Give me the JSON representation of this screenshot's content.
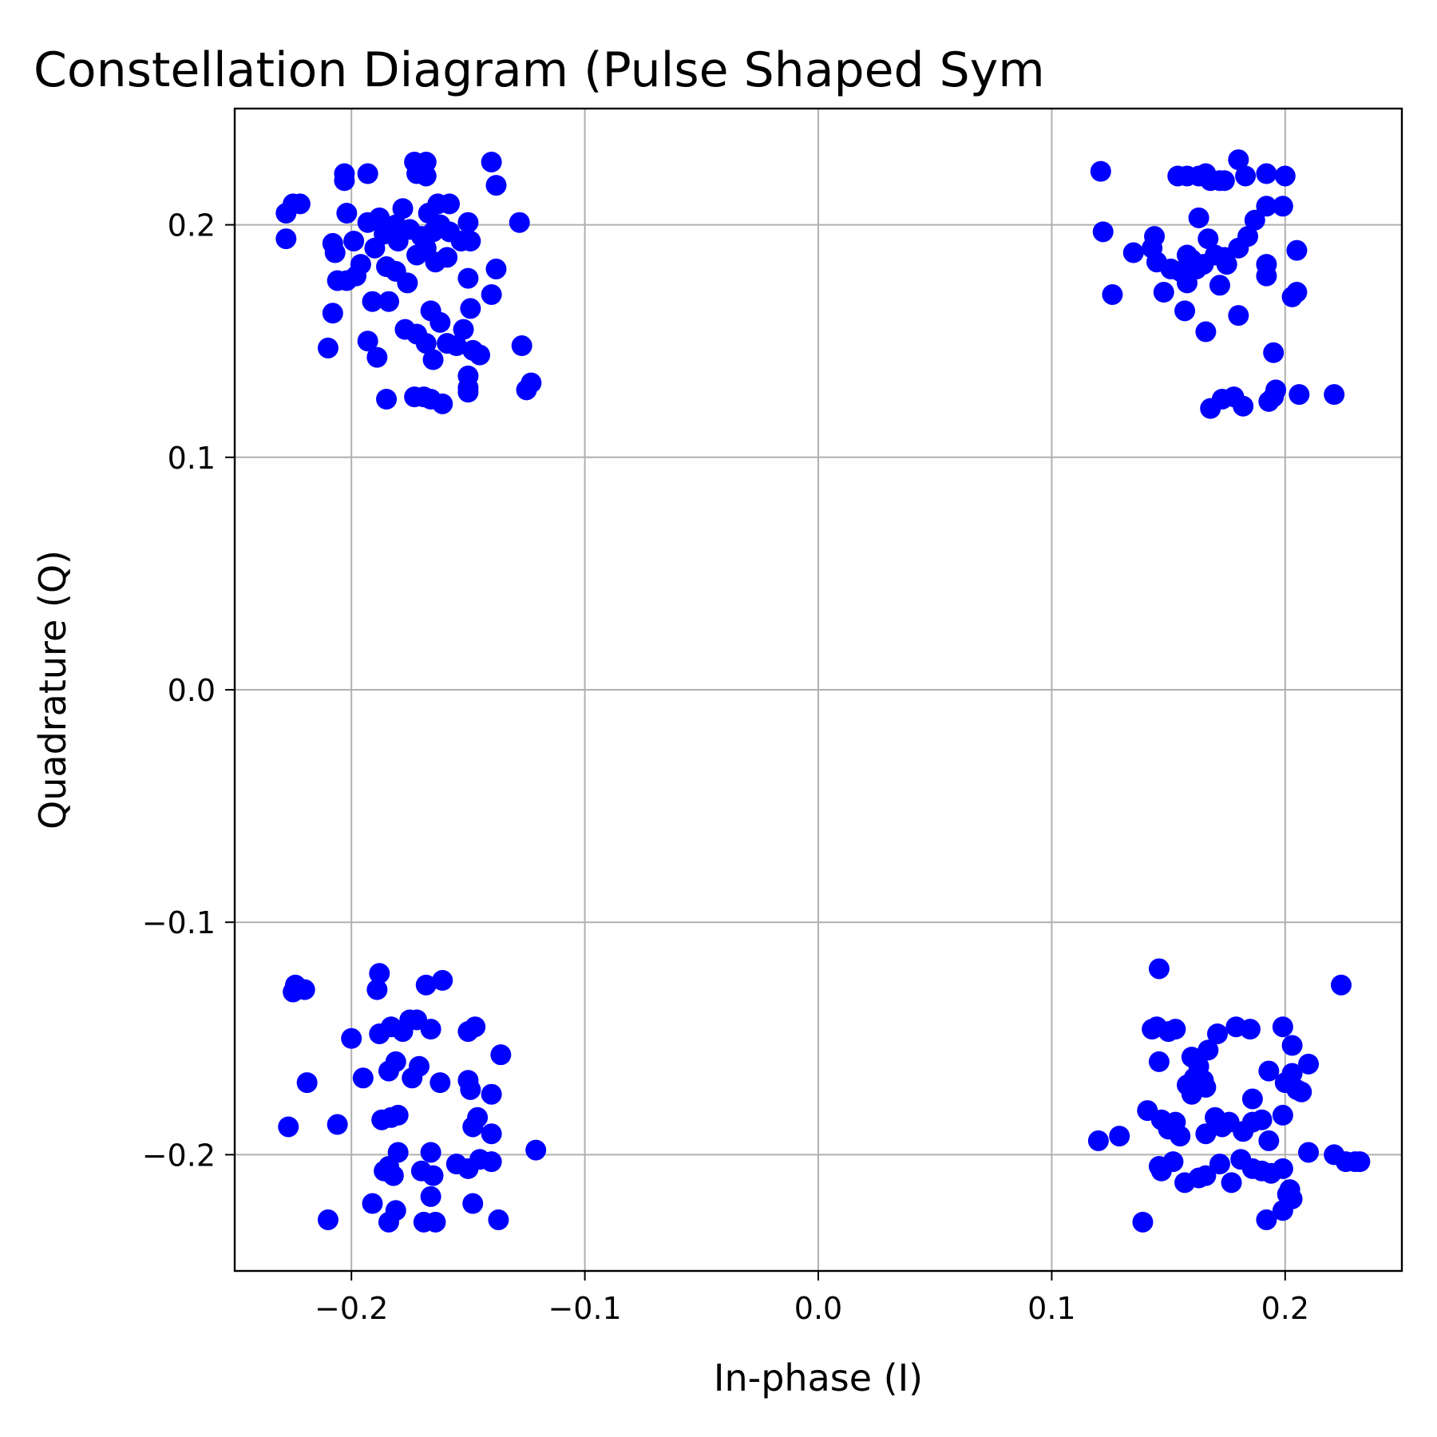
{
  "chart_data": {
    "type": "scatter",
    "title": "Constellation Diagram (Pulse Shaped Sym",
    "xlabel": "In-phase (I)",
    "ylabel": "Quadrature (Q)",
    "xlim": [
      -0.25,
      0.25
    ],
    "ylim": [
      -0.25,
      0.25
    ],
    "grid": true,
    "legend": "none",
    "marker_color": "#0000ff",
    "xticks": [
      -0.2,
      -0.1,
      0.0,
      0.1,
      0.2
    ],
    "xtick_labels": [
      "−0.2",
      "−0.1",
      "0.0",
      "0.1",
      "0.2"
    ],
    "yticks": [
      -0.2,
      -0.1,
      0.0,
      0.1,
      0.2
    ],
    "ytick_labels": [
      "−0.2",
      "−0.1",
      "0.0",
      "0.1",
      "0.2"
    ],
    "series": [
      {
        "points": [
          [
            -0.228,
            0.205
          ],
          [
            -0.225,
            0.209
          ],
          [
            -0.222,
            0.209
          ],
          [
            -0.228,
            0.194
          ],
          [
            -0.203,
            0.222
          ],
          [
            -0.203,
            0.219
          ],
          [
            -0.193,
            0.222
          ],
          [
            -0.202,
            0.205
          ],
          [
            -0.208,
            0.192
          ],
          [
            -0.207,
            0.188
          ],
          [
            -0.199,
            0.193
          ],
          [
            -0.193,
            0.201
          ],
          [
            -0.188,
            0.203
          ],
          [
            -0.185,
            0.198
          ],
          [
            -0.181,
            0.2
          ],
          [
            -0.178,
            0.207
          ],
          [
            -0.173,
            0.227
          ],
          [
            -0.168,
            0.227
          ],
          [
            -0.172,
            0.222
          ],
          [
            -0.168,
            0.221
          ],
          [
            -0.167,
            0.205
          ],
          [
            -0.163,
            0.209
          ],
          [
            -0.158,
            0.209
          ],
          [
            -0.162,
            0.2
          ],
          [
            -0.165,
            0.197
          ],
          [
            -0.15,
            0.201
          ],
          [
            -0.14,
            0.227
          ],
          [
            -0.138,
            0.217
          ],
          [
            -0.128,
            0.201
          ],
          [
            -0.149,
            0.193
          ],
          [
            -0.15,
            0.177
          ],
          [
            -0.138,
            0.181
          ],
          [
            -0.14,
            0.17
          ],
          [
            -0.149,
            0.164
          ],
          [
            -0.159,
            0.186
          ],
          [
            -0.164,
            0.184
          ],
          [
            -0.168,
            0.19
          ],
          [
            -0.172,
            0.187
          ],
          [
            -0.176,
            0.175
          ],
          [
            -0.181,
            0.18
          ],
          [
            -0.185,
            0.182
          ],
          [
            -0.19,
            0.19
          ],
          [
            -0.196,
            0.183
          ],
          [
            -0.198,
            0.178
          ],
          [
            -0.202,
            0.176
          ],
          [
            -0.206,
            0.176
          ],
          [
            -0.21,
            0.147
          ],
          [
            -0.208,
            0.162
          ],
          [
            -0.191,
            0.167
          ],
          [
            -0.184,
            0.167
          ],
          [
            -0.193,
            0.15
          ],
          [
            -0.189,
            0.143
          ],
          [
            -0.185,
            0.125
          ],
          [
            -0.173,
            0.126
          ],
          [
            -0.169,
            0.126
          ],
          [
            -0.166,
            0.125
          ],
          [
            -0.161,
            0.123
          ],
          [
            -0.177,
            0.155
          ],
          [
            -0.172,
            0.153
          ],
          [
            -0.168,
            0.149
          ],
          [
            -0.166,
            0.163
          ],
          [
            -0.162,
            0.158
          ],
          [
            -0.165,
            0.142
          ],
          [
            -0.159,
            0.149
          ],
          [
            -0.155,
            0.148
          ],
          [
            -0.152,
            0.155
          ],
          [
            -0.148,
            0.146
          ],
          [
            -0.145,
            0.144
          ],
          [
            -0.15,
            0.135
          ],
          [
            -0.15,
            0.13
          ],
          [
            -0.15,
            0.128
          ],
          [
            -0.127,
            0.148
          ],
          [
            -0.125,
            0.129
          ],
          [
            -0.123,
            0.132
          ],
          [
            -0.158,
            0.197
          ],
          [
            -0.153,
            0.193
          ],
          [
            -0.18,
            0.193
          ],
          [
            -0.186,
            0.196
          ],
          [
            -0.175,
            0.198
          ],
          [
            -0.17,
            0.195
          ]
        ]
      },
      {
        "points": [
          [
            0.121,
            0.223
          ],
          [
            0.122,
            0.197
          ],
          [
            0.126,
            0.17
          ],
          [
            0.135,
            0.188
          ],
          [
            0.143,
            0.19
          ],
          [
            0.144,
            0.195
          ],
          [
            0.145,
            0.184
          ],
          [
            0.148,
            0.171
          ],
          [
            0.151,
            0.181
          ],
          [
            0.154,
            0.221
          ],
          [
            0.158,
            0.221
          ],
          [
            0.163,
            0.221
          ],
          [
            0.166,
            0.222
          ],
          [
            0.168,
            0.219
          ],
          [
            0.172,
            0.219
          ],
          [
            0.174,
            0.219
          ],
          [
            0.18,
            0.228
          ],
          [
            0.183,
            0.221
          ],
          [
            0.192,
            0.222
          ],
          [
            0.2,
            0.221
          ],
          [
            0.192,
            0.208
          ],
          [
            0.199,
            0.208
          ],
          [
            0.187,
            0.202
          ],
          [
            0.184,
            0.195
          ],
          [
            0.18,
            0.19
          ],
          [
            0.174,
            0.186
          ],
          [
            0.17,
            0.187
          ],
          [
            0.167,
            0.194
          ],
          [
            0.163,
            0.203
          ],
          [
            0.162,
            0.181
          ],
          [
            0.158,
            0.187
          ],
          [
            0.155,
            0.18
          ],
          [
            0.158,
            0.175
          ],
          [
            0.157,
            0.163
          ],
          [
            0.166,
            0.154
          ],
          [
            0.172,
            0.174
          ],
          [
            0.175,
            0.183
          ],
          [
            0.18,
            0.161
          ],
          [
            0.192,
            0.183
          ],
          [
            0.192,
            0.178
          ],
          [
            0.205,
            0.189
          ],
          [
            0.203,
            0.169
          ],
          [
            0.205,
            0.171
          ],
          [
            0.195,
            0.145
          ],
          [
            0.196,
            0.129
          ],
          [
            0.193,
            0.124
          ],
          [
            0.195,
            0.126
          ],
          [
            0.206,
            0.127
          ],
          [
            0.221,
            0.127
          ],
          [
            0.168,
            0.121
          ],
          [
            0.173,
            0.125
          ],
          [
            0.178,
            0.126
          ],
          [
            0.182,
            0.122
          ],
          [
            0.16,
            0.185
          ],
          [
            0.165,
            0.183
          ]
        ]
      },
      {
        "points": [
          [
            -0.224,
            -0.127
          ],
          [
            -0.225,
            -0.13
          ],
          [
            -0.22,
            -0.129
          ],
          [
            -0.219,
            -0.169
          ],
          [
            -0.227,
            -0.188
          ],
          [
            -0.206,
            -0.187
          ],
          [
            -0.21,
            -0.228
          ],
          [
            -0.2,
            -0.15
          ],
          [
            -0.195,
            -0.167
          ],
          [
            -0.189,
            -0.129
          ],
          [
            -0.188,
            -0.122
          ],
          [
            -0.188,
            -0.148
          ],
          [
            -0.183,
            -0.145
          ],
          [
            -0.178,
            -0.147
          ],
          [
            -0.175,
            -0.142
          ],
          [
            -0.172,
            -0.142
          ],
          [
            -0.166,
            -0.146
          ],
          [
            -0.168,
            -0.127
          ],
          [
            -0.161,
            -0.125
          ],
          [
            -0.174,
            -0.167
          ],
          [
            -0.171,
            -0.162
          ],
          [
            -0.162,
            -0.169
          ],
          [
            -0.181,
            -0.16
          ],
          [
            -0.184,
            -0.164
          ],
          [
            -0.18,
            -0.183
          ],
          [
            -0.183,
            -0.184
          ],
          [
            -0.187,
            -0.185
          ],
          [
            -0.18,
            -0.199
          ],
          [
            -0.186,
            -0.207
          ],
          [
            -0.182,
            -0.209
          ],
          [
            -0.184,
            -0.205
          ],
          [
            -0.191,
            -0.221
          ],
          [
            -0.181,
            -0.224
          ],
          [
            -0.184,
            -0.229
          ],
          [
            -0.17,
            -0.207
          ],
          [
            -0.165,
            -0.209
          ],
          [
            -0.166,
            -0.199
          ],
          [
            -0.166,
            -0.218
          ],
          [
            -0.169,
            -0.229
          ],
          [
            -0.164,
            -0.229
          ],
          [
            -0.155,
            -0.204
          ],
          [
            -0.15,
            -0.206
          ],
          [
            -0.148,
            -0.221
          ],
          [
            -0.14,
            -0.203
          ],
          [
            -0.137,
            -0.228
          ],
          [
            -0.15,
            -0.168
          ],
          [
            -0.149,
            -0.172
          ],
          [
            -0.146,
            -0.184
          ],
          [
            -0.148,
            -0.188
          ],
          [
            -0.14,
            -0.174
          ],
          [
            -0.14,
            -0.191
          ],
          [
            -0.145,
            -0.202
          ],
          [
            -0.15,
            -0.147
          ],
          [
            -0.147,
            -0.145
          ],
          [
            -0.136,
            -0.157
          ],
          [
            -0.121,
            -0.198
          ]
        ]
      },
      {
        "points": [
          [
            0.146,
            -0.12
          ],
          [
            0.224,
            -0.127
          ],
          [
            0.143,
            -0.146
          ],
          [
            0.145,
            -0.145
          ],
          [
            0.15,
            -0.147
          ],
          [
            0.153,
            -0.146
          ],
          [
            0.146,
            -0.16
          ],
          [
            0.16,
            -0.158
          ],
          [
            0.163,
            -0.162
          ],
          [
            0.167,
            -0.155
          ],
          [
            0.171,
            -0.148
          ],
          [
            0.179,
            -0.145
          ],
          [
            0.185,
            -0.146
          ],
          [
            0.199,
            -0.145
          ],
          [
            0.203,
            -0.153
          ],
          [
            0.21,
            -0.161
          ],
          [
            0.193,
            -0.164
          ],
          [
            0.203,
            -0.165
          ],
          [
            0.2,
            -0.169
          ],
          [
            0.205,
            -0.172
          ],
          [
            0.207,
            -0.173
          ],
          [
            0.158,
            -0.17
          ],
          [
            0.161,
            -0.167
          ],
          [
            0.165,
            -0.168
          ],
          [
            0.16,
            -0.174
          ],
          [
            0.166,
            -0.171
          ],
          [
            0.186,
            -0.176
          ],
          [
            0.141,
            -0.181
          ],
          [
            0.147,
            -0.185
          ],
          [
            0.15,
            -0.189
          ],
          [
            0.153,
            -0.186
          ],
          [
            0.155,
            -0.192
          ],
          [
            0.166,
            -0.191
          ],
          [
            0.17,
            -0.184
          ],
          [
            0.173,
            -0.188
          ],
          [
            0.176,
            -0.186
          ],
          [
            0.182,
            -0.19
          ],
          [
            0.186,
            -0.186
          ],
          [
            0.19,
            -0.185
          ],
          [
            0.193,
            -0.194
          ],
          [
            0.199,
            -0.183
          ],
          [
            0.12,
            -0.194
          ],
          [
            0.129,
            -0.192
          ],
          [
            0.146,
            -0.205
          ],
          [
            0.147,
            -0.207
          ],
          [
            0.152,
            -0.203
          ],
          [
            0.157,
            -0.212
          ],
          [
            0.163,
            -0.21
          ],
          [
            0.166,
            -0.209
          ],
          [
            0.172,
            -0.204
          ],
          [
            0.177,
            -0.212
          ],
          [
            0.181,
            -0.202
          ],
          [
            0.186,
            -0.206
          ],
          [
            0.19,
            -0.207
          ],
          [
            0.194,
            -0.208
          ],
          [
            0.199,
            -0.206
          ],
          [
            0.202,
            -0.215
          ],
          [
            0.203,
            -0.219
          ],
          [
            0.199,
            -0.224
          ],
          [
            0.192,
            -0.228
          ],
          [
            0.139,
            -0.229
          ],
          [
            0.21,
            -0.199
          ],
          [
            0.221,
            -0.2
          ],
          [
            0.226,
            -0.203
          ],
          [
            0.23,
            -0.203
          ],
          [
            0.232,
            -0.203
          ],
          [
            0.201,
            -0.217
          ]
        ]
      }
    ]
  }
}
